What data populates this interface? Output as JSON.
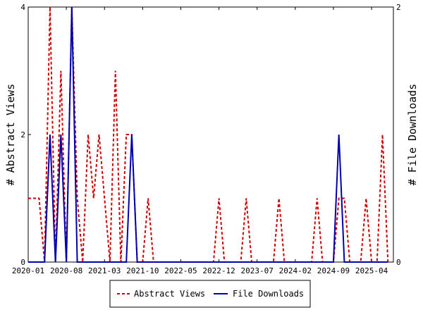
{
  "chart_data": {
    "type": "line",
    "xlabel": "",
    "ylabel_left": "# Abstract Views",
    "ylabel_right": "# File Downloads",
    "x_tick_labels": [
      "2020-01",
      "2020-08",
      "2021-03",
      "2021-10",
      "2022-05",
      "2022-12",
      "2023-07",
      "2024-02",
      "2024-09",
      "2025-04"
    ],
    "ylim_left": [
      0,
      4
    ],
    "yticks_left": [
      "0",
      "2",
      "4"
    ],
    "ylim_right": [
      0,
      2
    ],
    "yticks_right": [
      "0",
      "2"
    ],
    "legend_position": "bottom",
    "grid": false,
    "series": [
      {
        "name": "Abstract Views",
        "axis": "left",
        "color": "#cc0000",
        "style": "dashed",
        "points": [
          [
            "2020-01",
            1
          ],
          [
            "2020-02",
            1
          ],
          [
            "2020-03",
            1
          ],
          [
            "2020-04",
            0
          ],
          [
            "2020-05",
            4
          ],
          [
            "2020-06",
            0
          ],
          [
            "2020-07",
            3
          ],
          [
            "2020-08",
            0
          ],
          [
            "2020-09",
            4
          ],
          [
            "2020-10",
            1
          ],
          [
            "2020-11",
            0
          ],
          [
            "2020-12",
            2
          ],
          [
            "2021-01",
            1
          ],
          [
            "2021-02",
            2
          ],
          [
            "2021-03",
            1
          ],
          [
            "2021-04",
            0
          ],
          [
            "2021-05",
            3
          ],
          [
            "2021-06",
            0
          ],
          [
            "2021-07",
            2
          ],
          [
            "2021-08",
            2
          ],
          [
            "2021-09",
            0
          ],
          [
            "2021-10",
            0
          ],
          [
            "2021-11",
            1
          ],
          [
            "2021-12",
            0
          ],
          [
            "2022-01",
            0
          ],
          [
            "2022-02",
            0
          ],
          [
            "2022-03",
            0
          ],
          [
            "2022-04",
            0
          ],
          [
            "2022-05",
            0
          ],
          [
            "2022-06",
            0
          ],
          [
            "2022-07",
            0
          ],
          [
            "2022-08",
            0
          ],
          [
            "2022-09",
            0
          ],
          [
            "2022-10",
            0
          ],
          [
            "2022-11",
            0
          ],
          [
            "2022-12",
            1
          ],
          [
            "2023-01",
            0
          ],
          [
            "2023-02",
            0
          ],
          [
            "2023-03",
            0
          ],
          [
            "2023-04",
            0
          ],
          [
            "2023-05",
            1
          ],
          [
            "2023-06",
            0
          ],
          [
            "2023-07",
            0
          ],
          [
            "2023-08",
            0
          ],
          [
            "2023-09",
            0
          ],
          [
            "2023-10",
            0
          ],
          [
            "2023-11",
            1
          ],
          [
            "2023-12",
            0
          ],
          [
            "2024-01",
            0
          ],
          [
            "2024-02",
            0
          ],
          [
            "2024-03",
            0
          ],
          [
            "2024-04",
            0
          ],
          [
            "2024-05",
            0
          ],
          [
            "2024-06",
            1
          ],
          [
            "2024-07",
            0
          ],
          [
            "2024-08",
            0
          ],
          [
            "2024-09",
            0
          ],
          [
            "2024-10",
            1
          ],
          [
            "2024-11",
            1
          ],
          [
            "2024-12",
            0
          ],
          [
            "2025-01",
            0
          ],
          [
            "2025-02",
            0
          ],
          [
            "2025-03",
            1
          ],
          [
            "2025-04",
            0
          ],
          [
            "2025-05",
            0
          ],
          [
            "2025-06",
            2
          ],
          [
            "2025-07",
            0
          ]
        ]
      },
      {
        "name": "File Downloads",
        "axis": "right",
        "color": "#0000aa",
        "style": "solid",
        "points": [
          [
            "2020-01",
            0
          ],
          [
            "2020-02",
            0
          ],
          [
            "2020-03",
            0
          ],
          [
            "2020-04",
            0
          ],
          [
            "2020-05",
            1
          ],
          [
            "2020-06",
            0
          ],
          [
            "2020-07",
            1
          ],
          [
            "2020-08",
            0
          ],
          [
            "2020-09",
            2
          ],
          [
            "2020-10",
            0
          ],
          [
            "2020-11",
            0
          ],
          [
            "2020-12",
            0
          ],
          [
            "2021-01",
            0
          ],
          [
            "2021-02",
            0
          ],
          [
            "2021-03",
            0
          ],
          [
            "2021-04",
            0
          ],
          [
            "2021-05",
            0
          ],
          [
            "2021-06",
            0
          ],
          [
            "2021-07",
            0
          ],
          [
            "2021-08",
            1
          ],
          [
            "2021-09",
            0
          ],
          [
            "2021-10",
            0
          ],
          [
            "2021-11",
            0
          ],
          [
            "2021-12",
            0
          ],
          [
            "2022-01",
            0
          ],
          [
            "2022-06",
            0
          ],
          [
            "2023-01",
            0
          ],
          [
            "2023-06",
            0
          ],
          [
            "2024-01",
            0
          ],
          [
            "2024-06",
            0
          ],
          [
            "2024-08",
            0
          ],
          [
            "2024-09",
            0
          ],
          [
            "2024-10",
            1
          ],
          [
            "2024-11",
            0
          ],
          [
            "2025-01",
            0
          ],
          [
            "2025-07",
            0
          ]
        ]
      }
    ]
  }
}
